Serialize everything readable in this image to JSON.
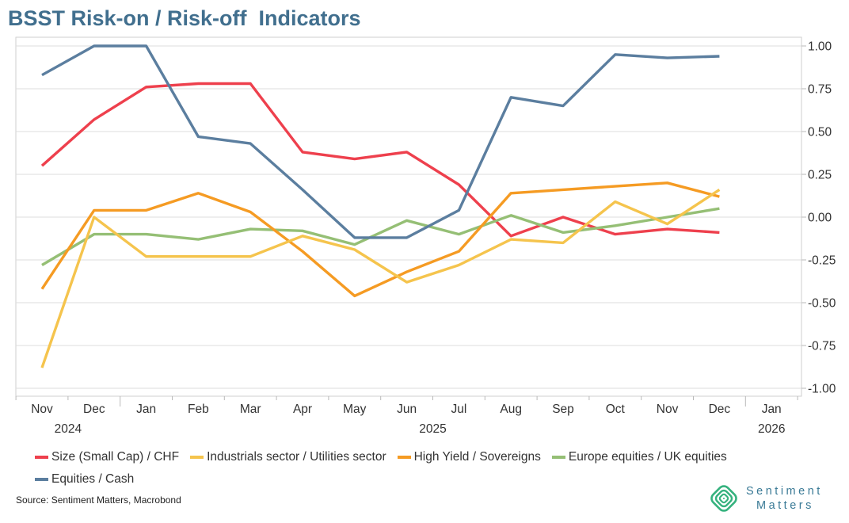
{
  "title": "BSST Risk-on / Risk-off  Indicators",
  "source": "Source: Sentiment Matters, Macrobond",
  "logo": {
    "line1": "Sentiment",
    "line2": "Matters"
  },
  "colors": {
    "title_blue": "#416f8e",
    "grid": "#dedede",
    "frame": "#cfcfcf",
    "axis_text": "#333333",
    "logo_green": "#35b27e",
    "logo_text": "#3a7a96"
  },
  "chart_data": {
    "type": "line",
    "x": [
      "Nov 2024",
      "Dec 2024",
      "Jan 2025",
      "Feb 2025",
      "Mar 2025",
      "Apr 2025",
      "May 2025",
      "Jun 2025",
      "Jul 2025",
      "Aug 2025",
      "Sep 2025",
      "Oct 2025",
      "Nov 2025",
      "Dec 2025"
    ],
    "x_axis_labels": [
      "Nov",
      "Dec",
      "Jan",
      "Feb",
      "Mar",
      "Apr",
      "May",
      "Jun",
      "Jul",
      "Aug",
      "Sep",
      "Oct",
      "Nov",
      "Dec",
      "Jan"
    ],
    "year_labels": [
      {
        "label": "2024",
        "month_index": 0.5
      },
      {
        "label": "2025",
        "month_index": 7.5
      },
      {
        "label": "2026",
        "month_index": 14
      }
    ],
    "ylim": [
      -1.0,
      1.0
    ],
    "yticks": [
      "1.00",
      "0.75",
      "0.50",
      "0.25",
      "0.00",
      "-0.25",
      "-0.50",
      "-0.75",
      "-1.00"
    ],
    "grid": true,
    "legend_position": "bottom",
    "series": [
      {
        "name": "Size (Small Cap) / CHF",
        "color": "#ee404d",
        "values": [
          0.3,
          0.57,
          0.76,
          0.78,
          0.78,
          0.38,
          0.34,
          0.38,
          0.19,
          -0.11,
          0.0,
          -0.1,
          -0.07,
          -0.09
        ]
      },
      {
        "name": "Industrials sector / Utilities sector",
        "color": "#f5c44d",
        "values": [
          -0.88,
          0.0,
          -0.23,
          -0.23,
          -0.23,
          -0.11,
          -0.19,
          -0.38,
          -0.28,
          -0.13,
          -0.15,
          0.09,
          -0.04,
          0.16
        ]
      },
      {
        "name": "High Yield / Sovereigns",
        "color": "#f59b23",
        "values": [
          -0.42,
          0.04,
          0.04,
          0.14,
          0.03,
          -0.2,
          -0.46,
          -0.32,
          -0.2,
          0.14,
          0.16,
          0.18,
          0.2,
          0.12
        ]
      },
      {
        "name": "Europe equities / UK equities",
        "color": "#95bf75",
        "values": [
          -0.28,
          -0.1,
          -0.1,
          -0.13,
          -0.07,
          -0.08,
          -0.16,
          -0.02,
          -0.1,
          0.01,
          -0.09,
          -0.05,
          0.0,
          0.05
        ]
      },
      {
        "name": "Equities / Cash",
        "color": "#5b7e9f",
        "values": [
          0.83,
          1.0,
          1.0,
          0.47,
          0.43,
          0.16,
          -0.12,
          -0.12,
          0.04,
          0.7,
          0.65,
          0.95,
          0.93,
          0.94
        ]
      }
    ],
    "draw_order": [
      0,
      3,
      2,
      1,
      4
    ]
  }
}
